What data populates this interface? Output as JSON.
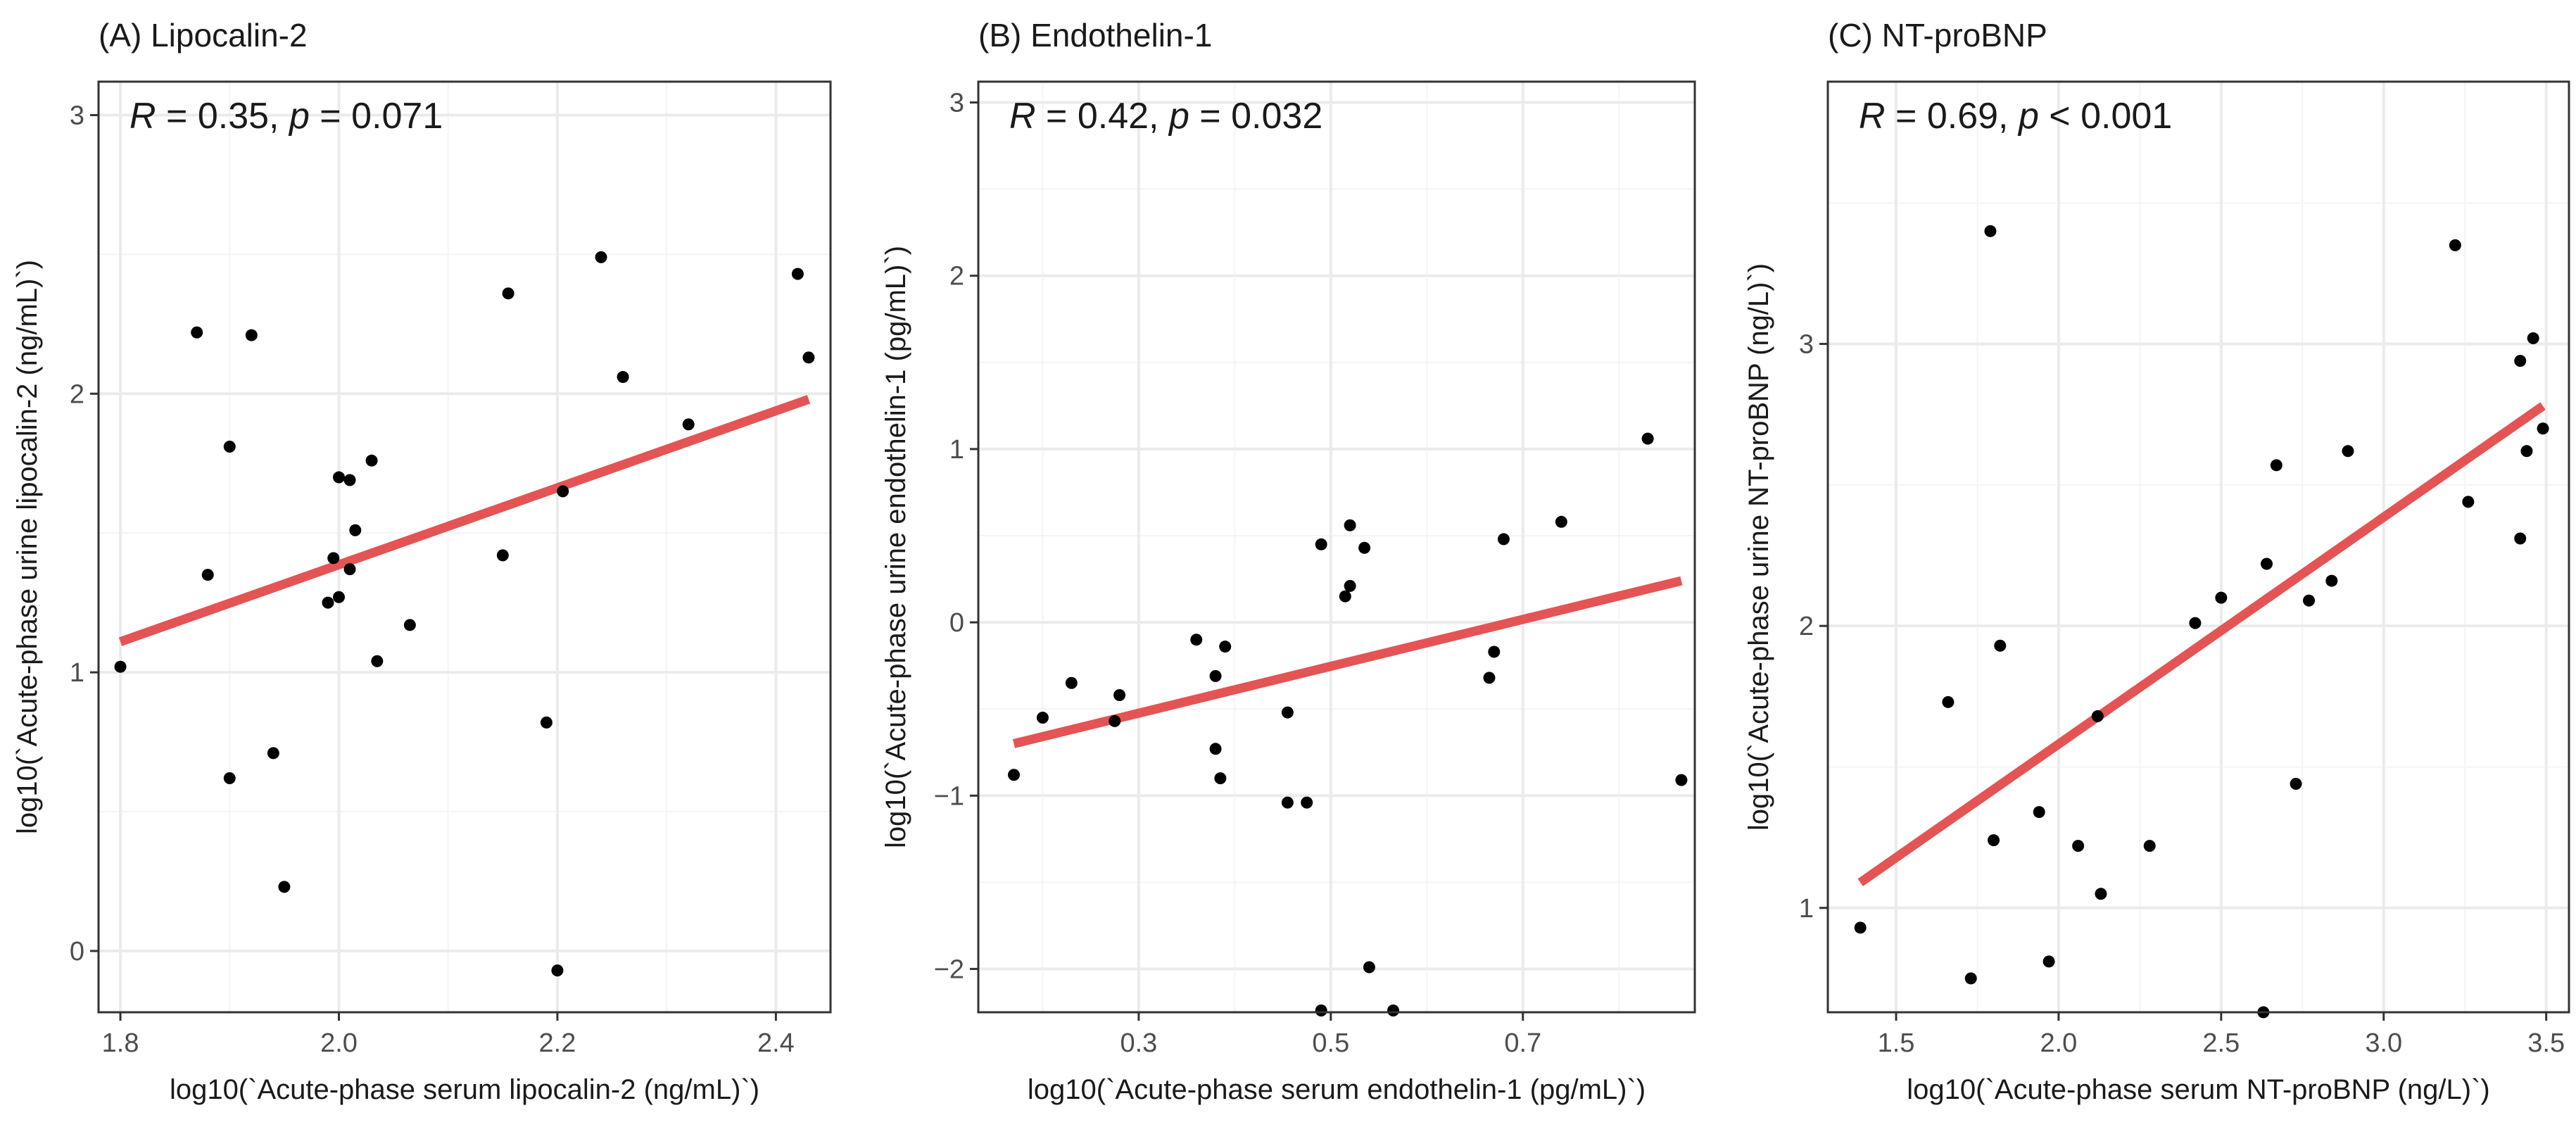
{
  "chart_data": [
    {
      "type": "scatter",
      "title": "(A) Lipocalin-2",
      "xlabel": "log10(`Acute-phase serum lipocalin-2 (ng/mL)`)",
      "ylabel": "log10(`Acute-phase urine lipocalin-2 (ng/mL)`)",
      "annotation": {
        "r_label": "R",
        "r_text": " = 0.35, ",
        "p_label": "p",
        "p_text": " = 0.071"
      },
      "xlim": [
        1.78,
        2.45
      ],
      "ylim": [
        -0.22,
        3.12
      ],
      "xticks": [
        1.8,
        2.0,
        2.2,
        2.4
      ],
      "xtick_labels": [
        "1.8",
        "2.0",
        "2.2",
        "2.4"
      ],
      "yticks": [
        0,
        1,
        2,
        3
      ],
      "ytick_labels": [
        "0",
        "1",
        "2",
        "3"
      ],
      "grid": true,
      "fit_line": {
        "x": [
          1.8,
          2.43
        ],
        "y": [
          1.11,
          1.98
        ],
        "color": "#e45454"
      },
      "points": [
        [
          1.8,
          1.02
        ],
        [
          1.87,
          2.22
        ],
        [
          1.88,
          1.35
        ],
        [
          1.9,
          0.62
        ],
        [
          1.9,
          1.81
        ],
        [
          1.92,
          2.21
        ],
        [
          1.94,
          0.71
        ],
        [
          1.95,
          0.23
        ],
        [
          1.99,
          1.25
        ],
        [
          1.995,
          1.41
        ],
        [
          2.0,
          1.27
        ],
        [
          2.0,
          1.7
        ],
        [
          2.01,
          1.69
        ],
        [
          2.01,
          1.37
        ],
        [
          2.015,
          1.51
        ],
        [
          2.03,
          1.76
        ],
        [
          2.035,
          1.04
        ],
        [
          2.065,
          1.17
        ],
        [
          2.15,
          1.42
        ],
        [
          2.155,
          2.36
        ],
        [
          2.19,
          0.82
        ],
        [
          2.2,
          -0.07
        ],
        [
          2.205,
          1.65
        ],
        [
          2.24,
          2.49
        ],
        [
          2.26,
          2.06
        ],
        [
          2.32,
          1.89
        ],
        [
          2.42,
          2.43
        ],
        [
          2.43,
          2.13
        ]
      ]
    },
    {
      "type": "scatter",
      "title": "(B) Endothelin-1",
      "xlabel": "log10(`Acute-phase serum endothelin-1 (pg/mL)`)",
      "ylabel": "log10(`Acute-phase urine endothelin-1 (pg/mL)`)",
      "annotation": {
        "r_label": "R",
        "r_text": " = 0.42, ",
        "p_label": "p",
        "p_text": " = 0.032"
      },
      "xlim": [
        0.133,
        0.879
      ],
      "ylim": [
        -2.25,
        3.12
      ],
      "xticks": [
        0.3,
        0.5,
        0.7
      ],
      "xtick_labels": [
        "0.3",
        "0.5",
        "0.7"
      ],
      "yticks": [
        -2,
        -1,
        0,
        1,
        2,
        3
      ],
      "ytick_labels": [
        "−2",
        "−1",
        "0",
        "1",
        "2",
        "3"
      ],
      "grid": true,
      "fit_line": {
        "x": [
          0.17,
          0.865
        ],
        "y": [
          -0.7,
          0.24
        ],
        "color": "#e45454"
      },
      "points": [
        [
          0.17,
          -0.88
        ],
        [
          0.2,
          -0.55
        ],
        [
          0.23,
          -0.35
        ],
        [
          0.275,
          -0.57
        ],
        [
          0.28,
          -0.42
        ],
        [
          0.36,
          -0.1
        ],
        [
          0.38,
          -0.73
        ],
        [
          0.38,
          -0.31
        ],
        [
          0.385,
          -0.9
        ],
        [
          0.39,
          -0.14
        ],
        [
          0.455,
          -0.52
        ],
        [
          0.455,
          -1.04
        ],
        [
          0.475,
          -1.04
        ],
        [
          0.49,
          -2.24
        ],
        [
          0.49,
          0.45
        ],
        [
          0.515,
          0.15
        ],
        [
          0.52,
          0.21
        ],
        [
          0.52,
          0.56
        ],
        [
          0.535,
          0.43
        ],
        [
          0.54,
          -1.99
        ],
        [
          0.565,
          -2.24
        ],
        [
          0.665,
          -0.32
        ],
        [
          0.67,
          -0.17
        ],
        [
          0.68,
          0.48
        ],
        [
          0.74,
          0.58
        ],
        [
          0.83,
          1.06
        ],
        [
          0.865,
          -0.91
        ]
      ]
    },
    {
      "type": "scatter",
      "title": "(C) NT-proBNP",
      "xlabel": "log10(`Acute-phase serum NT-proBNP (ng/L)`)",
      "ylabel": "log10(`Acute-phase urine NT-proBNP (ng/L)`)",
      "annotation": {
        "r_label": "R",
        "r_text": " = 0.69, ",
        "p_label": "p",
        "p_text": " < 0.001"
      },
      "xlim": [
        1.29,
        3.57
      ],
      "ylim": [
        0.63,
        3.93
      ],
      "xticks": [
        1.5,
        2.0,
        2.5,
        3.0,
        3.5
      ],
      "xtick_labels": [
        "1.5",
        "2.0",
        "2.5",
        "3.0",
        "3.5"
      ],
      "yticks": [
        1,
        2,
        3
      ],
      "ytick_labels": [
        "1",
        "2",
        "3"
      ],
      "grid": true,
      "fit_line": {
        "x": [
          1.39,
          3.49
        ],
        "y": [
          1.09,
          2.78
        ],
        "color": "#e45454"
      },
      "points": [
        [
          1.39,
          0.93
        ],
        [
          1.66,
          1.73
        ],
        [
          1.73,
          0.75
        ],
        [
          1.79,
          3.4
        ],
        [
          1.8,
          1.24
        ],
        [
          1.82,
          1.93
        ],
        [
          1.94,
          1.34
        ],
        [
          1.97,
          0.81
        ],
        [
          2.06,
          1.22
        ],
        [
          2.12,
          1.68
        ],
        [
          2.13,
          1.05
        ],
        [
          2.28,
          1.22
        ],
        [
          2.42,
          2.01
        ],
        [
          2.5,
          2.1
        ],
        [
          2.63,
          0.63
        ],
        [
          2.64,
          2.22
        ],
        [
          2.67,
          2.57
        ],
        [
          2.73,
          1.44
        ],
        [
          2.77,
          2.09
        ],
        [
          2.84,
          2.16
        ],
        [
          2.89,
          2.62
        ],
        [
          3.22,
          3.35
        ],
        [
          3.26,
          2.44
        ],
        [
          3.42,
          2.94
        ],
        [
          3.42,
          2.31
        ],
        [
          3.44,
          2.62
        ],
        [
          3.46,
          3.02
        ],
        [
          3.49,
          2.7
        ]
      ]
    }
  ]
}
